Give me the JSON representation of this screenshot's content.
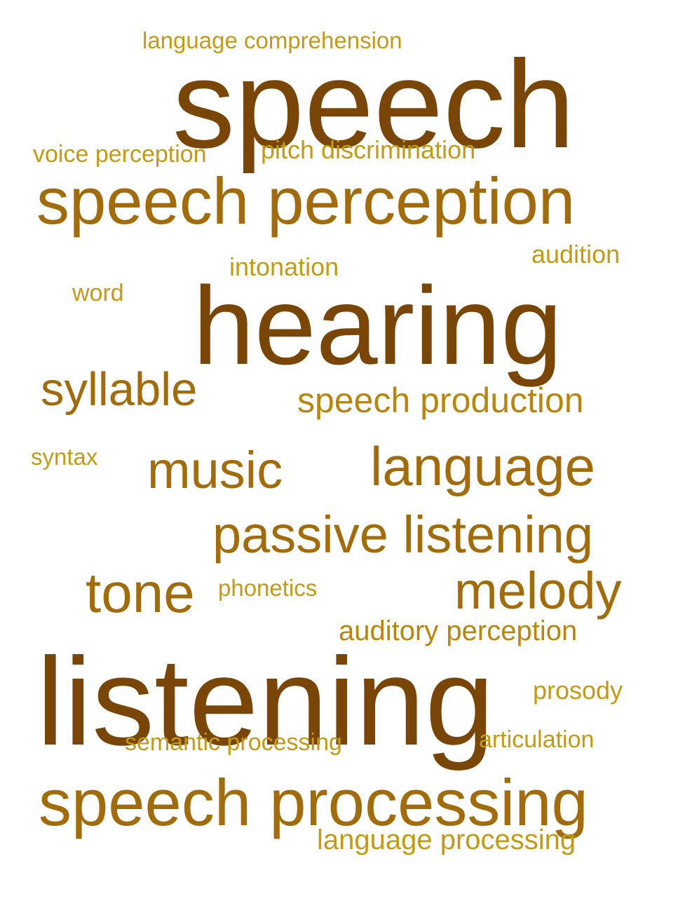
{
  "words": {
    "speech": "speech",
    "listening": "listening",
    "hearing": "hearing",
    "speech_perception": "speech perception",
    "speech_processing": "speech processing",
    "passive_listening": "passive listening",
    "language": "language",
    "tone": "tone",
    "melody": "melody",
    "music": "music",
    "syllable": "syllable",
    "speech_production": "speech production",
    "auditory_perception": "auditory perception",
    "language_processing": "language processing",
    "pitch_discrimination": "pitch discrimination",
    "voice_perception": "voice perception",
    "language_comprehension": "language comprehension",
    "intonation": "intonation",
    "audition": "audition",
    "semantic_processing": "semantic processing",
    "articulation": "articulation",
    "prosody": "prosody",
    "phonetics": "phonetics",
    "word": "word",
    "syntax": "syntax"
  },
  "colors": {
    "dark_brown": "#7a4608",
    "brown": "#a26b0b",
    "golden": "#b8860f",
    "light_gold": "#c39a18"
  }
}
